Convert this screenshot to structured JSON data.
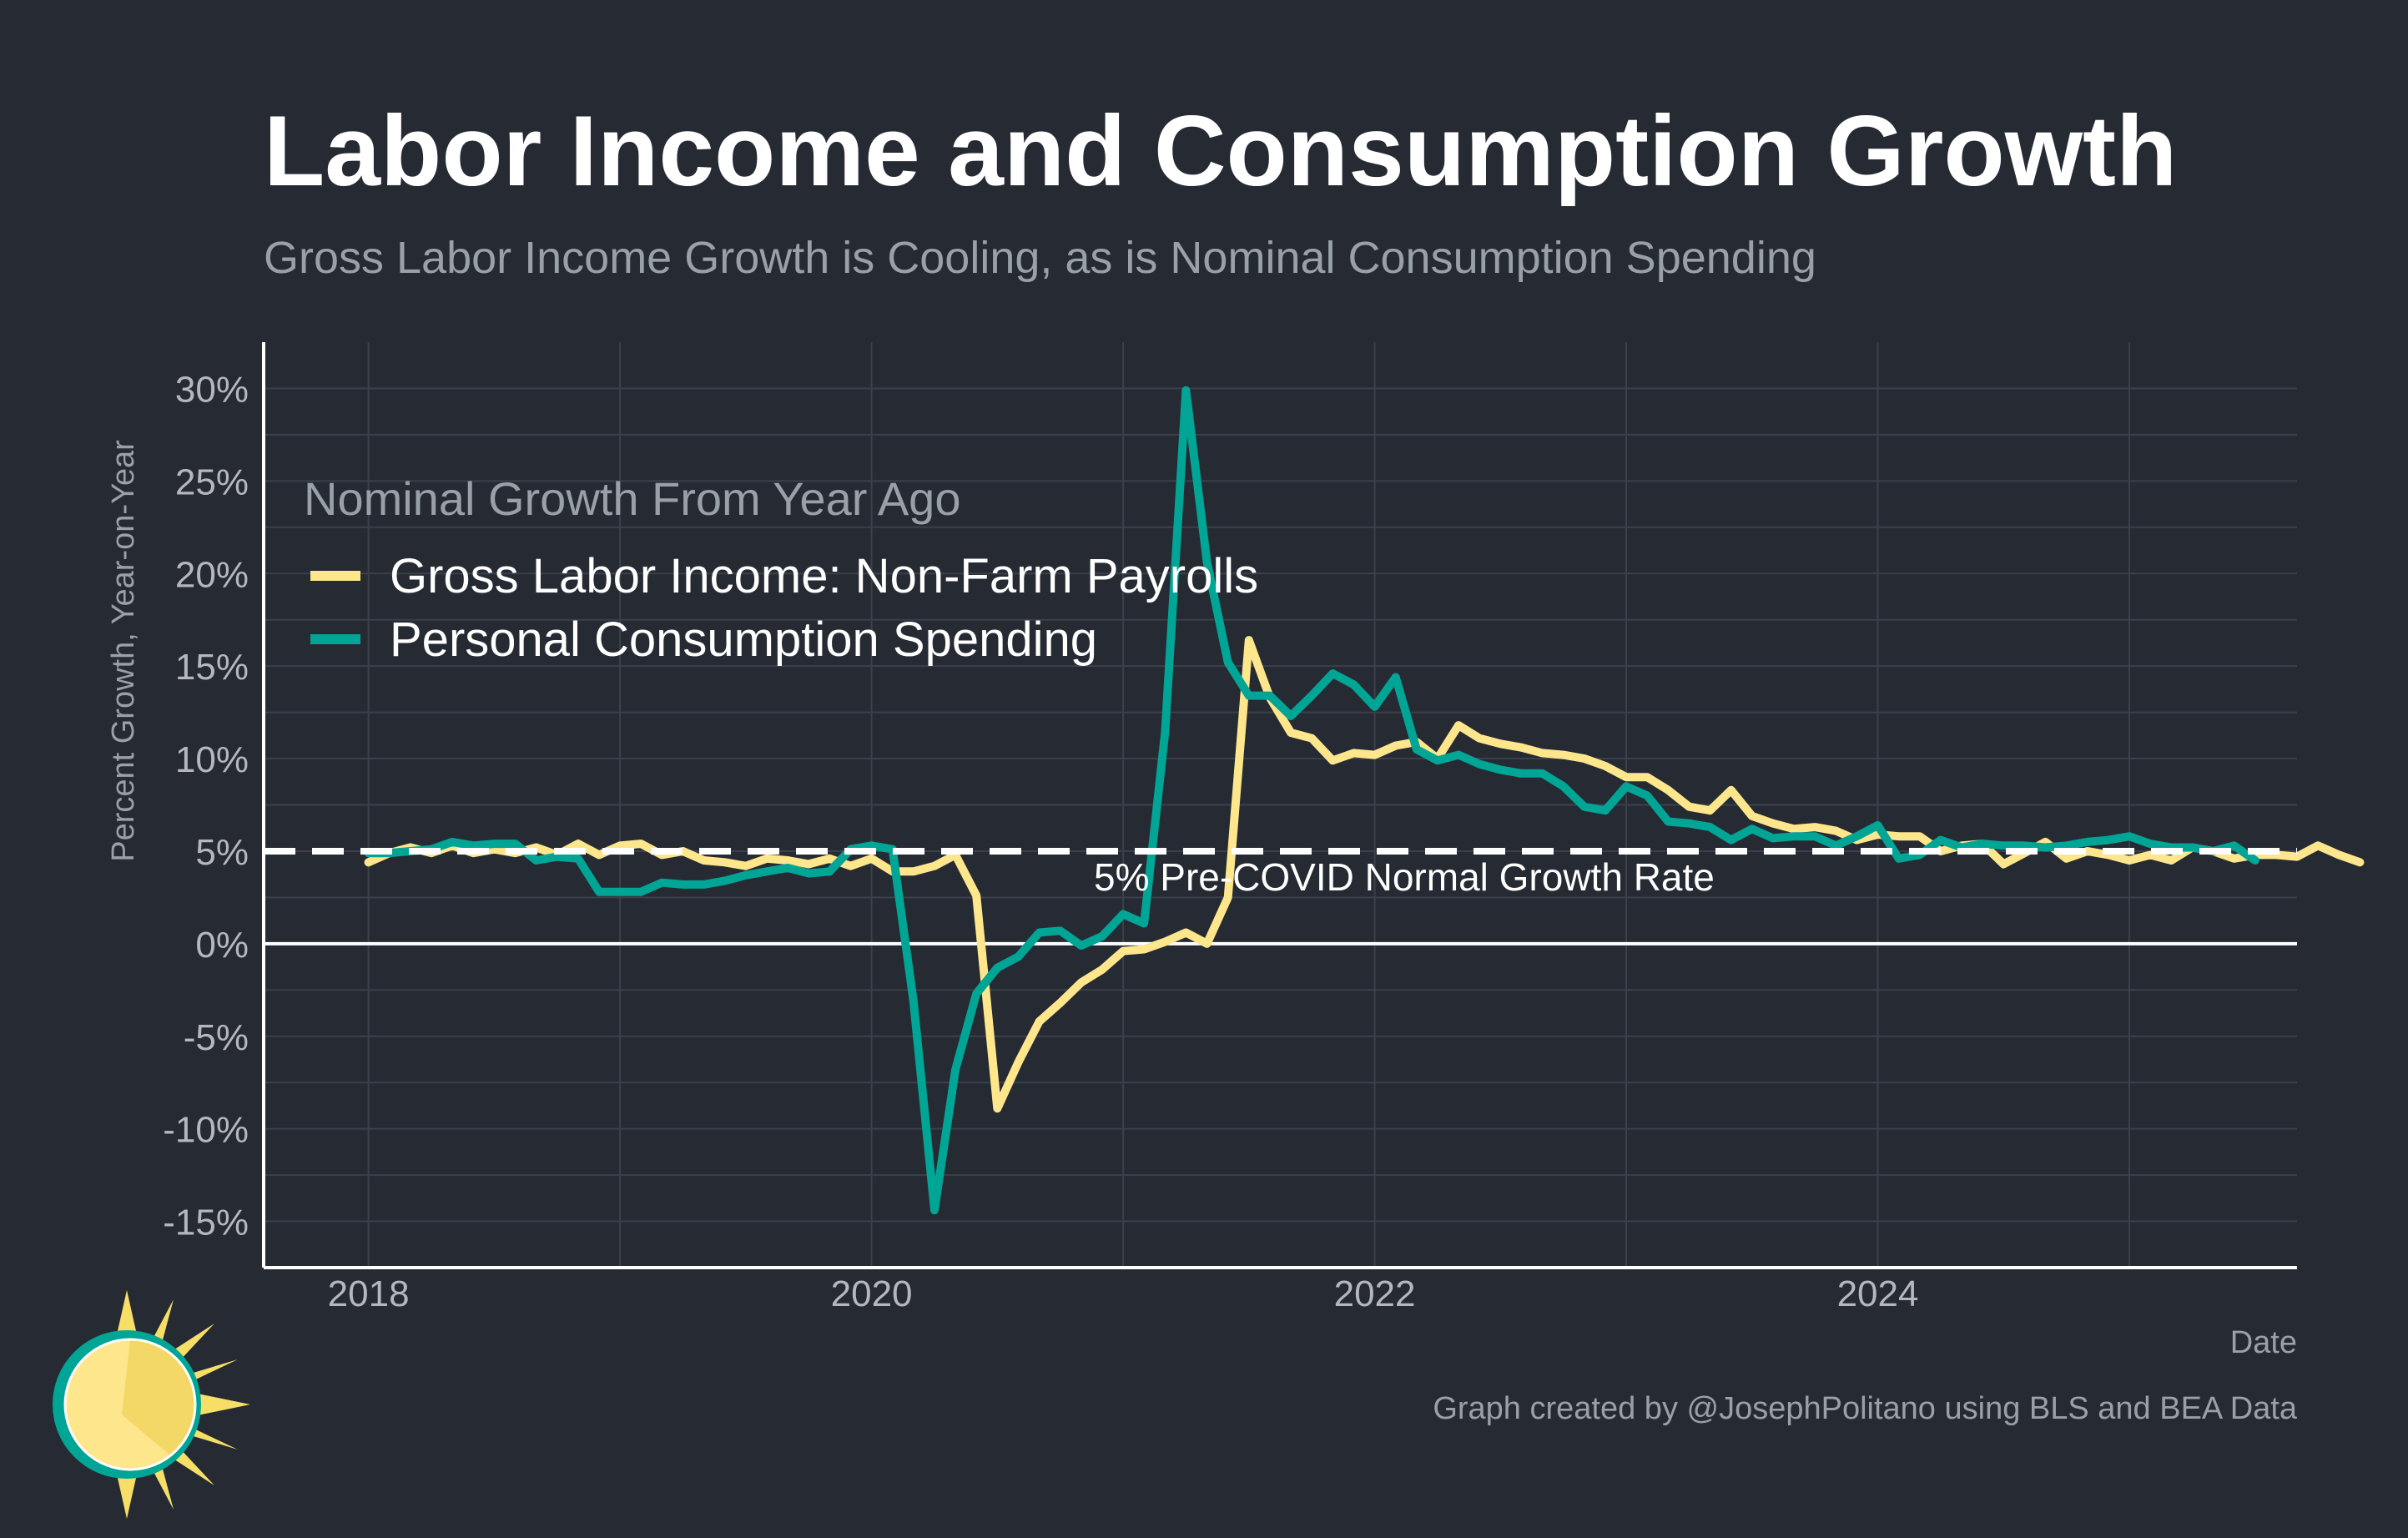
{
  "title": "Labor Income and Consumption Growth",
  "subtitle": "Gross Labor Income Growth is Cooling, as is Nominal Consumption Spending",
  "caption": "Graph created by @JosephPolitano using BLS and BEA Data",
  "colors": {
    "background": "#252a33",
    "labor": "#fde68b",
    "consumption": "#00a595",
    "grid": "#3b414b"
  },
  "logo": {
    "name": "sun-logo-icon"
  },
  "chart_data": {
    "type": "line",
    "xlabel": "Date",
    "ylabel": "Percent Growth, Year-on-Year",
    "xlim": [
      "2017-08",
      "2025-09"
    ],
    "ylim": [
      -17.5,
      32.5
    ],
    "x_ticks": [
      {
        "date": "2018-01",
        "label": "2018"
      },
      {
        "date": "2020-01",
        "label": "2020"
      },
      {
        "date": "2022-01",
        "label": "2022"
      },
      {
        "date": "2024-01",
        "label": "2024"
      }
    ],
    "y_ticks": [
      {
        "value": 30,
        "label": "30%"
      },
      {
        "value": 25,
        "label": "25%"
      },
      {
        "value": 20,
        "label": "20%"
      },
      {
        "value": 15,
        "label": "15%"
      },
      {
        "value": 10,
        "label": "10%"
      },
      {
        "value": 5,
        "label": "5%"
      },
      {
        "value": 0,
        "label": "0%"
      },
      {
        "value": -5,
        "label": "-5%"
      },
      {
        "value": -10,
        "label": "-10%"
      },
      {
        "value": -15,
        "label": "-15%"
      }
    ],
    "reference_line": {
      "value": 5,
      "label": "5% Pre-COVID Normal Growth Rate"
    },
    "legend": {
      "title": "Nominal Growth From Year Ago",
      "placement": "top-left"
    },
    "grid": true,
    "start": "2018-01",
    "series": [
      {
        "name": "Gross Labor Income: Non-Farm Payrolls",
        "color": "#fde68b",
        "values": [
          4.4,
          4.9,
          5.2,
          4.9,
          5.3,
          4.9,
          5.1,
          4.9,
          5.2,
          4.8,
          5.4,
          4.8,
          5.3,
          5.4,
          4.8,
          5.0,
          4.5,
          4.4,
          4.2,
          4.6,
          4.5,
          4.3,
          4.6,
          4.2,
          4.6,
          3.9,
          3.9,
          4.2,
          4.8,
          2.6,
          -8.9,
          -6.4,
          -4.2,
          -3.2,
          -2.1,
          -1.4,
          -0.4,
          -0.3,
          0.1,
          0.6,
          0.0,
          2.5,
          16.4,
          13.3,
          11.4,
          11.1,
          9.9,
          10.3,
          10.2,
          10.7,
          10.9,
          10.0,
          11.8,
          11.1,
          10.8,
          10.6,
          10.3,
          10.2,
          10.0,
          9.6,
          9.0,
          9.0,
          8.3,
          7.4,
          7.2,
          8.3,
          6.9,
          6.5,
          6.2,
          6.3,
          6.1,
          5.6,
          5.9,
          5.8,
          5.8,
          5.0,
          5.3,
          5.4,
          4.3,
          4.9,
          5.5,
          4.6,
          5.0,
          4.8,
          4.5,
          4.8,
          4.5,
          5.2,
          5.0,
          4.6,
          4.8,
          4.8,
          4.7,
          5.3,
          4.8,
          4.4
        ]
      },
      {
        "name": "Personal Consumption Spending",
        "color": "#00a595",
        "values": [
          4.9,
          4.9,
          5.0,
          5.1,
          5.5,
          5.3,
          5.4,
          5.4,
          4.5,
          4.7,
          4.6,
          2.8,
          2.8,
          2.8,
          3.3,
          3.2,
          3.2,
          3.4,
          3.7,
          3.9,
          4.1,
          3.8,
          3.9,
          5.1,
          5.3,
          5.1,
          -3.1,
          -14.4,
          -6.8,
          -2.7,
          -1.3,
          -0.7,
          0.6,
          0.7,
          -0.1,
          0.4,
          1.6,
          1.1,
          11.4,
          29.9,
          20.6,
          15.2,
          13.4,
          13.4,
          12.3,
          13.4,
          14.6,
          14.0,
          12.8,
          14.4,
          10.5,
          9.9,
          10.2,
          9.7,
          9.4,
          9.2,
          9.2,
          8.5,
          7.4,
          7.2,
          8.5,
          8.0,
          6.6,
          6.5,
          6.3,
          5.6,
          6.2,
          5.7,
          5.8,
          5.8,
          5.3,
          5.8,
          6.4,
          4.6,
          4.8,
          5.6,
          5.2,
          5.4,
          5.3,
          5.3,
          5.2,
          5.3,
          5.5,
          5.6,
          5.8,
          5.4,
          5.2,
          5.2,
          5.0,
          5.3,
          4.5
        ]
      }
    ]
  }
}
